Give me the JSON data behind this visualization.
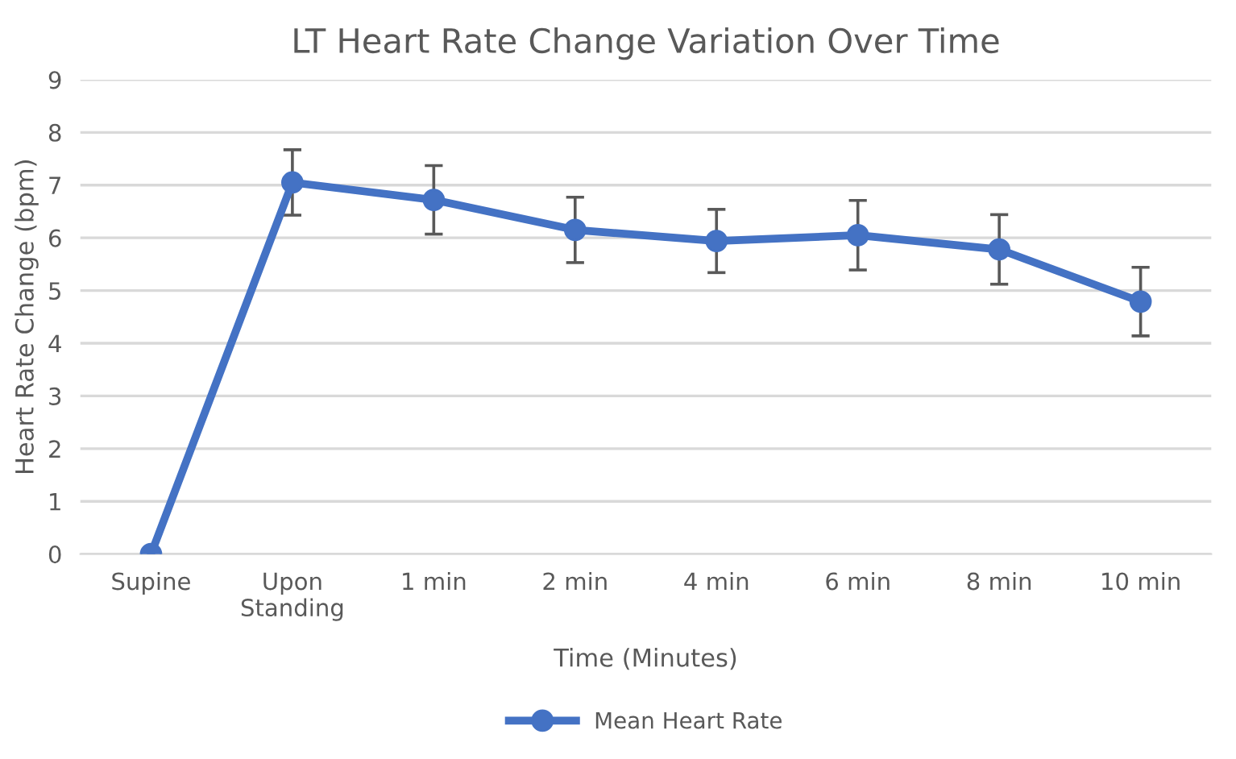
{
  "chart_data": {
    "type": "line",
    "title": "LT Heart Rate Change Variation Over Time",
    "xlabel": "Time (Minutes)",
    "ylabel": "Heart Rate Change (bpm)",
    "categories": [
      "Supine",
      "Upon\nStanding",
      "1 min",
      "2 min",
      "4 min",
      "6 min",
      "8 min",
      "10 min"
    ],
    "series": [
      {
        "name": "Mean Heart Rate",
        "color": "#4472c4",
        "values": [
          0,
          7.05,
          6.72,
          6.15,
          5.94,
          6.05,
          5.78,
          4.79
        ],
        "errors": [
          null,
          0.62,
          0.65,
          0.62,
          0.6,
          0.66,
          0.66,
          0.65
        ]
      }
    ],
    "ylim": [
      0,
      9
    ],
    "yticks": [
      0,
      1,
      2,
      3,
      4,
      5,
      6,
      7,
      8,
      9
    ],
    "grid": "y",
    "legend": "bottom",
    "marker": "circle",
    "line_style": "solid"
  }
}
